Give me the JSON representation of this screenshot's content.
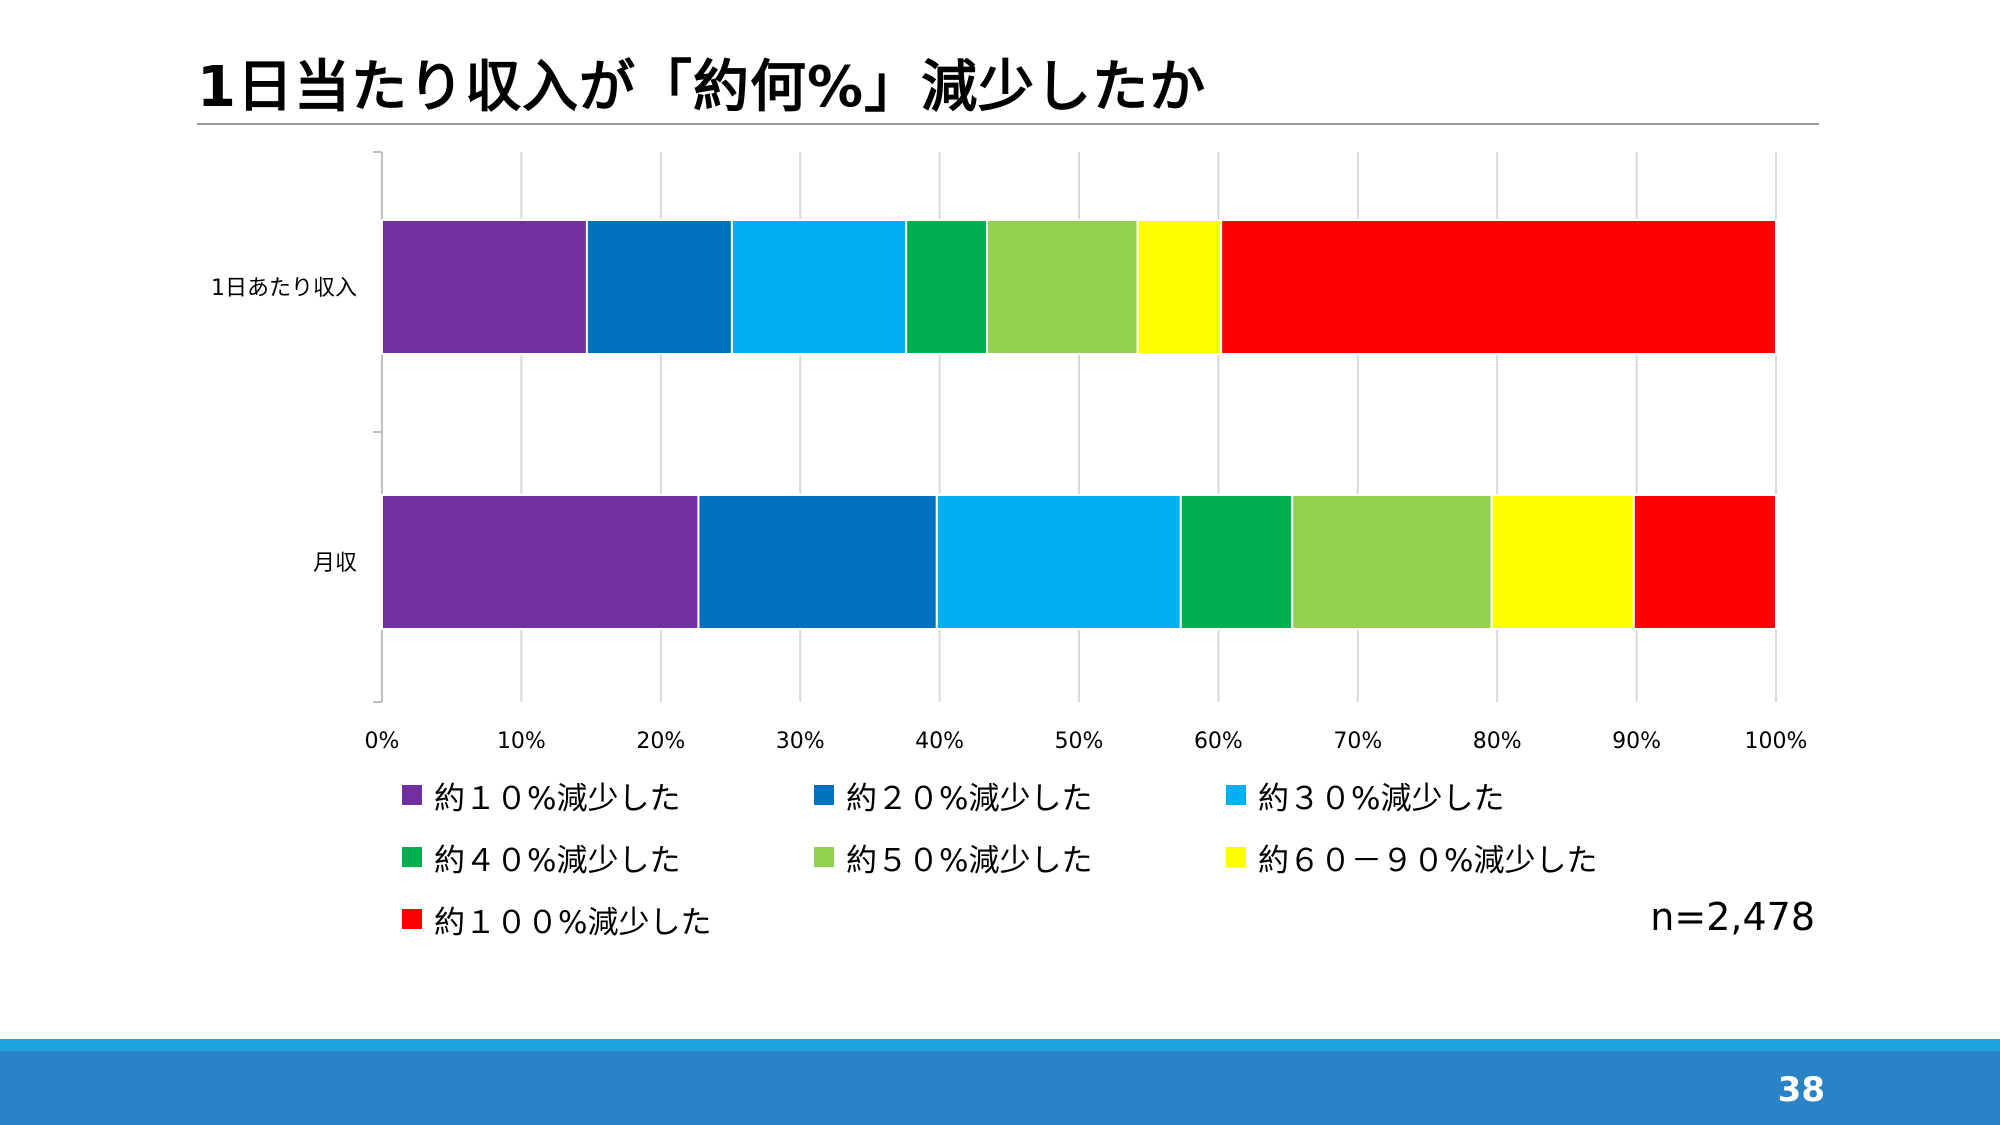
{
  "title": "1日当たり収入が「約何%」減少したか",
  "sample_size": "n=2,478",
  "page_number": "38",
  "chart_data": {
    "type": "bar",
    "orientation": "horizontal",
    "stacked": true,
    "stack_mode": "percent",
    "title": "",
    "xlabel": "",
    "ylabel": "",
    "xlim": [
      0,
      100
    ],
    "x_ticks": [
      "0%",
      "10%",
      "20%",
      "30%",
      "40%",
      "50%",
      "60%",
      "70%",
      "80%",
      "90%",
      "100%"
    ],
    "categories": [
      "1日あたり収入",
      "月収"
    ],
    "grid": true,
    "legend_position": "bottom",
    "series": [
      {
        "name": "約１０%減少した",
        "color": "#7030a0",
        "values": [
          14.7,
          22.7
        ]
      },
      {
        "name": "約２０%減少した",
        "color": "#0070c0",
        "values": [
          10.4,
          17.1
        ]
      },
      {
        "name": "約３０%減少した",
        "color": "#00b0f0",
        "values": [
          12.5,
          17.5
        ]
      },
      {
        "name": "約４０%減少した",
        "color": "#00b050",
        "values": [
          5.8,
          8.0
        ]
      },
      {
        "name": "約５０%減少した",
        "color": "#92d050",
        "values": [
          10.8,
          14.3
        ]
      },
      {
        "name": "約６０－９０%減少した",
        "color": "#ffff00",
        "values": [
          6.0,
          10.2
        ]
      },
      {
        "name": "約１００%減少した",
        "color": "#ff0000",
        "values": [
          39.8,
          10.2
        ]
      }
    ]
  }
}
